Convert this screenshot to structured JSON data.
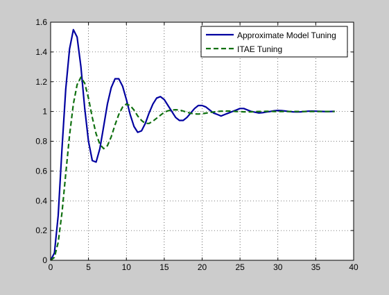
{
  "chart_data": {
    "type": "line",
    "title": "",
    "xlabel": "",
    "ylabel": "",
    "xlim": [
      0,
      40
    ],
    "ylim": [
      0,
      1.6
    ],
    "x_ticks": [
      0,
      5,
      10,
      15,
      20,
      25,
      30,
      35,
      40
    ],
    "y_ticks": [
      0,
      0.2,
      0.4,
      0.6,
      0.8,
      1,
      1.2,
      1.4,
      1.6
    ],
    "grid": true,
    "grid_style": "dotted",
    "legend_position": "top-right",
    "colors": {
      "figure_bg": "#cccccc",
      "axes_bg": "#ffffff",
      "series_1": "#0000a0",
      "series_2": "#107010"
    },
    "series": [
      {
        "name": "Approximate Model Tuning",
        "line_style": "solid",
        "x": [
          0,
          0.5,
          1,
          1.5,
          2,
          2.5,
          3,
          3.5,
          4,
          4.5,
          5,
          5.5,
          6,
          6.5,
          7,
          7.5,
          8,
          8.5,
          9,
          9.5,
          10,
          10.5,
          11,
          11.5,
          12,
          12.5,
          13,
          13.5,
          14,
          14.5,
          15,
          15.5,
          16,
          16.5,
          17,
          17.5,
          18,
          18.5,
          19,
          19.5,
          20,
          20.5,
          21,
          21.5,
          22,
          22.5,
          23,
          23.5,
          24,
          24.5,
          25,
          25.5,
          26,
          26.5,
          27,
          27.5,
          28,
          28.5,
          29,
          29.5,
          30,
          30.5,
          31,
          31.5,
          32,
          32.5,
          33,
          33.5,
          34,
          34.5,
          35,
          35.5,
          36,
          36.5,
          37,
          37.5
        ],
        "y": [
          0,
          0.05,
          0.3,
          0.75,
          1.15,
          1.42,
          1.55,
          1.5,
          1.3,
          1.02,
          0.8,
          0.67,
          0.66,
          0.75,
          0.9,
          1.05,
          1.16,
          1.22,
          1.22,
          1.17,
          1.08,
          0.98,
          0.9,
          0.86,
          0.87,
          0.92,
          0.99,
          1.05,
          1.09,
          1.1,
          1.08,
          1.04,
          1,
          0.96,
          0.94,
          0.94,
          0.96,
          0.99,
          1.02,
          1.04,
          1.04,
          1.03,
          1.01,
          0.99,
          0.98,
          0.97,
          0.98,
          0.99,
          1.0,
          1.01,
          1.02,
          1.02,
          1.01,
          1.0,
          0.995,
          0.99,
          0.992,
          0.997,
          1.0,
          1.005,
          1.007,
          1.006,
          1.003,
          1.0,
          0.998,
          0.997,
          0.998,
          1.0,
          1.002,
          1.003,
          1.002,
          1.001,
          1.0,
          0.999,
          1.0,
          1.001
        ]
      },
      {
        "name": "ITAE Tuning",
        "line_style": "dashed",
        "x": [
          0,
          0.5,
          1,
          1.5,
          2,
          2.5,
          3,
          3.5,
          4,
          4.5,
          5,
          5.5,
          6,
          6.5,
          7,
          7.5,
          8,
          8.5,
          9,
          9.5,
          10,
          10.5,
          11,
          11.5,
          12,
          12.5,
          13,
          13.5,
          14,
          14.5,
          15,
          15.5,
          16,
          16.5,
          17,
          17.5,
          18,
          18.5,
          19,
          19.5,
          20,
          20.5,
          21,
          21.5,
          22,
          22.5,
          23,
          23.5,
          24,
          24.5,
          25,
          25.5,
          26,
          26.5,
          27,
          27.5,
          28,
          28.5,
          29,
          29.5,
          30,
          30.5,
          31,
          31.5,
          32,
          32.5,
          33,
          33.5,
          34,
          34.5,
          35,
          35.5,
          36,
          36.5,
          37,
          37.5
        ],
        "y": [
          0,
          0.02,
          0.12,
          0.32,
          0.58,
          0.84,
          1.05,
          1.18,
          1.23,
          1.19,
          1.09,
          0.96,
          0.85,
          0.78,
          0.75,
          0.77,
          0.83,
          0.91,
          0.98,
          1.03,
          1.05,
          1.04,
          1.01,
          0.97,
          0.94,
          0.92,
          0.92,
          0.935,
          0.955,
          0.975,
          0.995,
          1.005,
          1.01,
          1.012,
          1.01,
          1.003,
          0.995,
          0.988,
          0.984,
          0.983,
          0.985,
          0.989,
          0.993,
          0.997,
          1.0,
          1.002,
          1.003,
          1.003,
          1.002,
          1.0,
          0.999,
          0.998,
          0.998,
          0.998,
          0.999,
          1.0,
          1.0,
          1.001,
          1.001,
          1.0,
          1.0,
          1.0,
          1.0,
          1.0,
          1.0,
          1.0,
          1.0,
          1.0,
          1.0,
          1.0,
          1.0,
          1.0,
          1.0,
          1.0,
          1.0,
          1.0
        ]
      }
    ]
  }
}
